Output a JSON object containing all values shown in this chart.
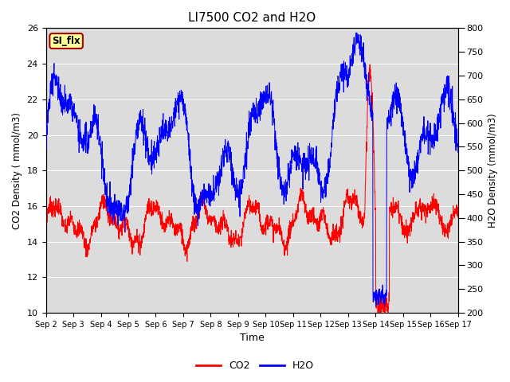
{
  "title": "LI7500 CO2 and H2O",
  "xlabel": "Time",
  "ylabel_left": "CO2 Density ( mmol/m3)",
  "ylabel_right": "H2O Density (mmol/m3)",
  "ylim_left": [
    10,
    26
  ],
  "ylim_right": [
    200,
    800
  ],
  "yticks_left": [
    10,
    12,
    14,
    16,
    18,
    20,
    22,
    24,
    26
  ],
  "yticks_right": [
    200,
    250,
    300,
    350,
    400,
    450,
    500,
    550,
    600,
    650,
    700,
    750,
    800
  ],
  "xtick_labels": [
    "Sep 2",
    "Sep 3",
    "Sep 4",
    "Sep 5",
    "Sep 6",
    "Sep 7",
    "Sep 8",
    "Sep 9",
    "Sep 10",
    "Sep 11",
    "Sep 12",
    "Sep 13",
    "Sep 14",
    "Sep 15",
    "Sep 16",
    "Sep 17"
  ],
  "co2_color": "#FF0000",
  "h2o_color": "#0000FF",
  "annotation_text": "SI_flx",
  "annotation_bg": "#FFFF99",
  "annotation_border": "#AA0000",
  "background_color": "#DCDCDC",
  "grid_color": "#FFFFFF",
  "legend_co2": "CO2",
  "legend_h2o": "H2O",
  "n_points": 2000,
  "random_seed": 7
}
